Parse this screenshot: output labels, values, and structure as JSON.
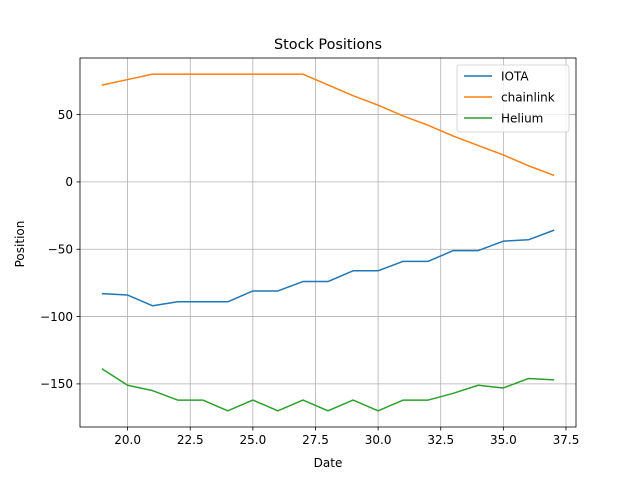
{
  "chart_data": {
    "type": "line",
    "title": "Stock Positions",
    "xlabel": "Date",
    "ylabel": "Position",
    "xlim": [
      18.1,
      37.9
    ],
    "ylim": [
      -182,
      92
    ],
    "xticks": [
      20.0,
      22.5,
      25.0,
      27.5,
      30.0,
      32.5,
      35.0,
      37.5
    ],
    "xtick_labels": [
      "20.0",
      "22.5",
      "25.0",
      "27.5",
      "30.0",
      "32.5",
      "35.0",
      "37.5"
    ],
    "yticks": [
      50,
      0,
      -50,
      -100,
      -150
    ],
    "ytick_labels": [
      "50",
      "0",
      "−50",
      "−100",
      "−150"
    ],
    "grid": true,
    "legend_position": "top-right",
    "x": [
      19,
      20,
      21,
      22,
      23,
      24,
      25,
      26,
      27,
      28,
      29,
      30,
      31,
      32,
      33,
      34,
      35,
      36,
      37
    ],
    "series": [
      {
        "name": "IOTA",
        "color": "#1f77b4",
        "values": [
          -83,
          -84,
          -92,
          -89,
          -89,
          -89,
          -81,
          -81,
          -74,
          -74,
          -66,
          -66,
          -59,
          -59,
          -51,
          -51,
          -44,
          -43,
          -36
        ]
      },
      {
        "name": "chainlink",
        "color": "#ff7f0e",
        "values": [
          72,
          76,
          80,
          80,
          80,
          80,
          80,
          80,
          80,
          72,
          64,
          57,
          49,
          42,
          34,
          27,
          20,
          12,
          5
        ]
      },
      {
        "name": "Helium",
        "color": "#2ca02c",
        "values": [
          -139,
          -151,
          -155,
          -162,
          -162,
          -170,
          -162,
          -170,
          -162,
          -170,
          -162,
          -170,
          -162,
          -162,
          -157,
          -151,
          -153,
          -146,
          -147
        ]
      }
    ]
  }
}
